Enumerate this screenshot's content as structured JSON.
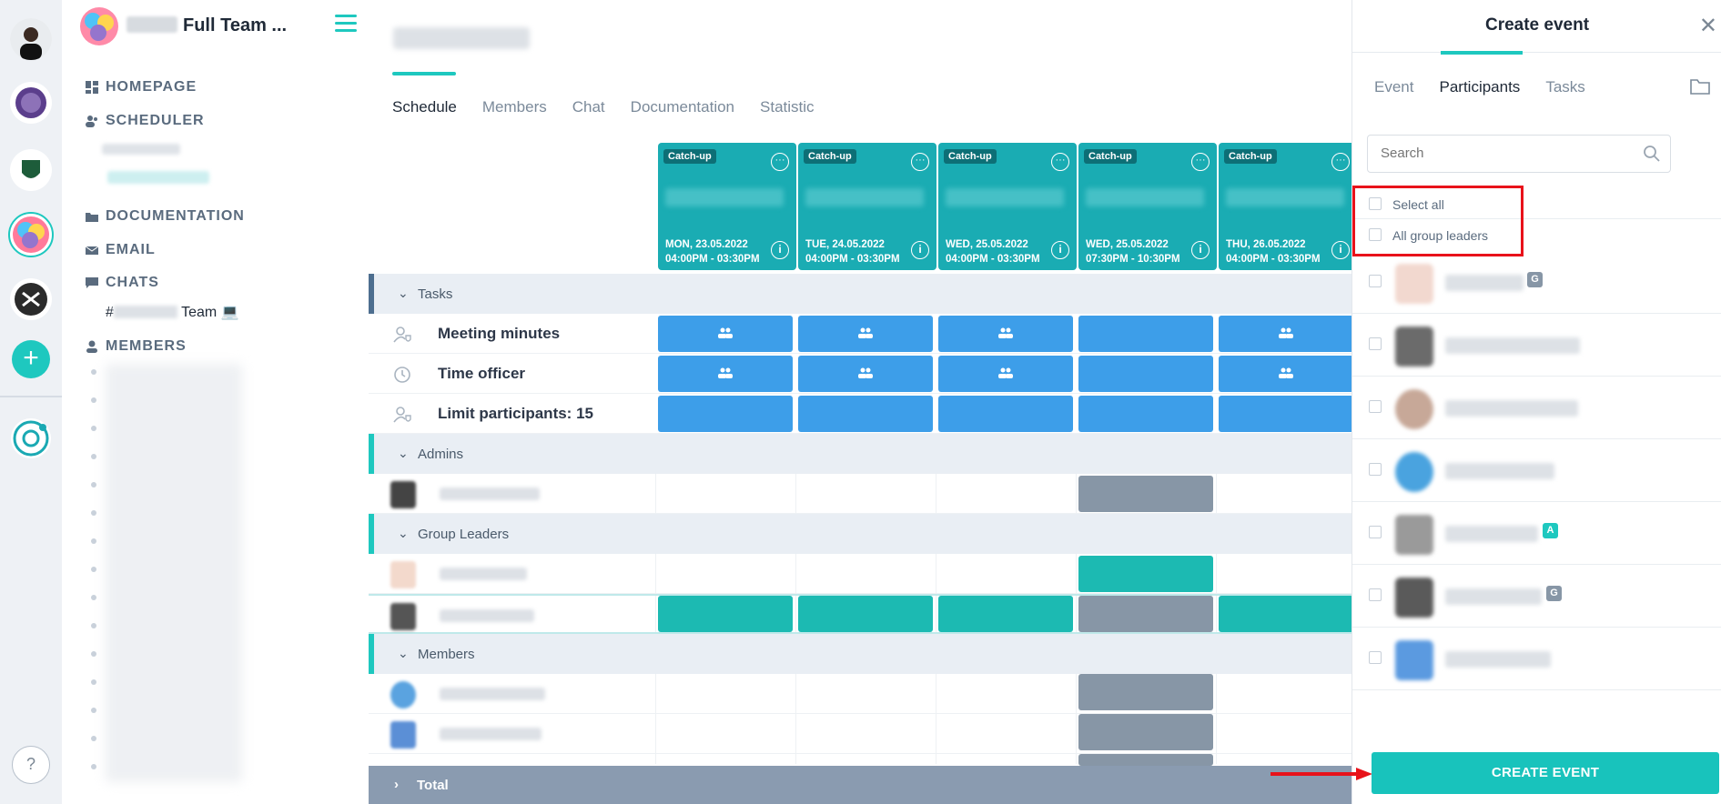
{
  "sidebar": {
    "team_name": "Full Team ...",
    "nav": {
      "homepage": "HOMEPAGE",
      "scheduler": "SCHEDULER",
      "documentation": "DOCUMENTATION",
      "email": "EMAIL",
      "chats": "CHATS",
      "members": "MEMBERS"
    },
    "chat_channel": "Team 💻",
    "chat_prefix": "#"
  },
  "main": {
    "tabs": [
      "Schedule",
      "Members",
      "Chat",
      "Documentation",
      "Statistic"
    ],
    "active_tab": "Schedule",
    "events": [
      {
        "tag": "Catch-up",
        "date": "MON, 23.05.2022",
        "time": "04:00PM - 03:30PM"
      },
      {
        "tag": "Catch-up",
        "date": "TUE, 24.05.2022",
        "time": "04:00PM - 03:30PM"
      },
      {
        "tag": "Catch-up",
        "date": "WED, 25.05.2022",
        "time": "04:00PM - 03:30PM"
      },
      {
        "tag": "Catch-up",
        "date": "WED, 25.05.2022",
        "time": "07:30PM - 10:30PM"
      },
      {
        "tag": "Catch-up",
        "date": "THU, 26.05.2022",
        "time": "04:00PM - 03:30PM"
      }
    ],
    "sections": {
      "tasks": "Tasks",
      "admins": "Admins",
      "group_leaders": "Group Leaders",
      "members": "Members",
      "total": "Total"
    },
    "task_rows": [
      "Meeting minutes",
      "Time officer",
      "Limit participants: 15"
    ]
  },
  "panel": {
    "title": "Create event",
    "tabs": [
      "Event",
      "Participants",
      "Tasks"
    ],
    "active_tab": "Participants",
    "search_placeholder": "Search",
    "select_all": "Select all",
    "all_group_leaders": "All group leaders",
    "participant_badges": [
      "G",
      "",
      "",
      "",
      "A",
      "G",
      ""
    ],
    "create_button": "CREATE EVENT"
  },
  "colors": {
    "accent": "#1ec8bf",
    "event_header": "#1aacb3",
    "task_cell": "#3d9ee9",
    "busy_cell": "#8796a6",
    "highlight": "#e8121a"
  },
  "rail": {
    "help": "?",
    "add": "+"
  }
}
